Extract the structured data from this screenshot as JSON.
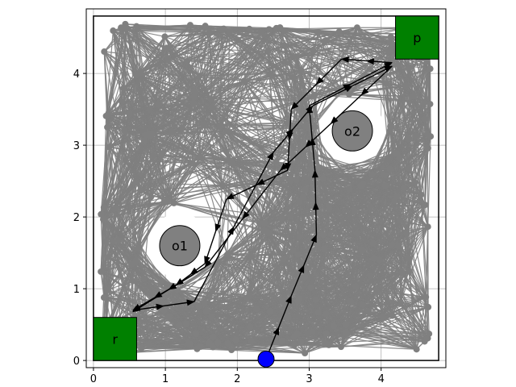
{
  "chart_data": {
    "type": "scatter",
    "description_free": true,
    "xlim": [
      -0.1,
      4.9
    ],
    "ylim": [
      -0.1,
      4.9
    ],
    "x_ticks": [
      0,
      1,
      2,
      3,
      4
    ],
    "y_ticks": [
      0,
      1,
      2,
      3,
      4
    ],
    "grid": true,
    "boundary": {
      "x0": 0,
      "y0": 0,
      "x1": 4.8,
      "y1": 4.8
    },
    "regions": [
      {
        "label": "r",
        "x0": 0,
        "y0": 0,
        "x1": 0.6,
        "y1": 0.6,
        "color": "#008000"
      },
      {
        "label": "p",
        "x0": 4.2,
        "y0": 4.2,
        "x1": 4.8,
        "y1": 4.8,
        "color": "#008000"
      }
    ],
    "obstacles": [
      {
        "label": "o1",
        "x": 1.2,
        "y": 1.6,
        "r": 0.28,
        "clearance_r": 0.45
      },
      {
        "label": "o2",
        "x": 3.6,
        "y": 3.2,
        "r": 0.28,
        "clearance_r": 0.45
      }
    ],
    "roadmap_color": "#808080",
    "start": {
      "x": 2.4,
      "y": 0.02,
      "color": "#0000ff"
    },
    "path": [
      [
        2.4,
        0.02
      ],
      [
        2.75,
        0.9
      ],
      [
        3.1,
        1.75
      ],
      [
        3.08,
        2.65
      ],
      [
        3.0,
        3.55
      ],
      [
        4.15,
        4.15
      ],
      [
        3.45,
        4.2
      ],
      [
        2.75,
        3.5
      ],
      [
        2.7,
        2.65
      ],
      [
        1.85,
        2.25
      ],
      [
        1.55,
        1.35
      ],
      [
        1.15,
        1.05
      ],
      [
        0.55,
        0.7
      ],
      [
        1.4,
        0.82
      ],
      [
        2.5,
        2.9
      ],
      [
        3.05,
        3.55
      ],
      [
        4.15,
        4.1
      ],
      [
        3.3,
        3.3
      ],
      [
        2.6,
        2.65
      ],
      [
        1.55,
        1.3
      ],
      [
        0.55,
        0.68
      ]
    ]
  }
}
